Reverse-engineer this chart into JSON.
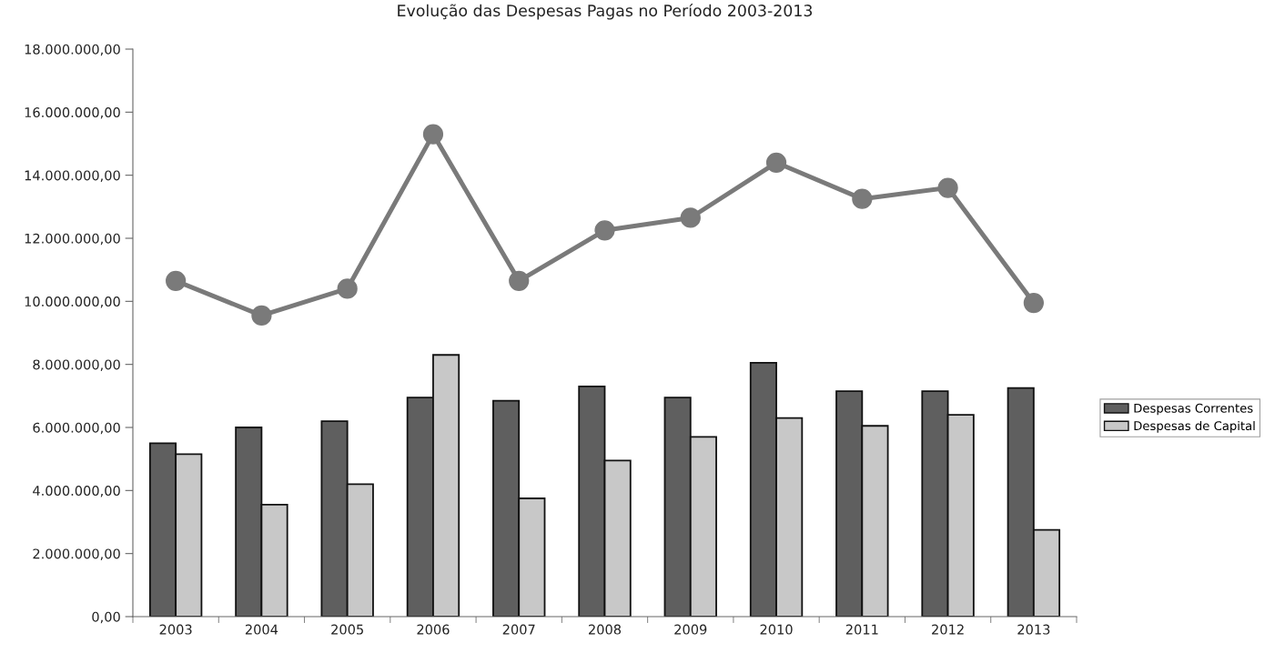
{
  "chart_data": {
    "type": "bar",
    "title": "Evolução das Despesas Pagas no Período 2003-2013",
    "categories": [
      "2003",
      "2004",
      "2005",
      "2006",
      "2007",
      "2008",
      "2009",
      "2010",
      "2011",
      "2012",
      "2013"
    ],
    "series": [
      {
        "name": "Despesas Correntes",
        "color": "#5f5f5f",
        "values": [
          5500000,
          6000000,
          6200000,
          6950000,
          6850000,
          7300000,
          6950000,
          8050000,
          7150000,
          7150000,
          7250000
        ]
      },
      {
        "name": "Despesas de Capital",
        "color": "#c8c8c8",
        "values": [
          5150000,
          3550000,
          4200000,
          8300000,
          3750000,
          4950000,
          5700000,
          6300000,
          6050000,
          6400000,
          2750000
        ]
      },
      {
        "type": "line",
        "color": "#7a7a7a",
        "marker": "circle",
        "values": [
          10650000,
          9550000,
          10400000,
          15300000,
          10650000,
          12250000,
          12650000,
          14400000,
          13250000,
          13600000,
          9950000
        ]
      }
    ],
    "ylim": [
      0,
      18000000
    ],
    "yticks": [
      {
        "value": 0,
        "label": "0,00"
      },
      {
        "value": 2000000,
        "label": "2.000.000,00"
      },
      {
        "value": 4000000,
        "label": "4.000.000,00"
      },
      {
        "value": 6000000,
        "label": "6.000.000,00"
      },
      {
        "value": 8000000,
        "label": "8.000.000,00"
      },
      {
        "value": 10000000,
        "label": "10.000.000,00"
      },
      {
        "value": 12000000,
        "label": "12.000.000,00"
      },
      {
        "value": 14000000,
        "label": "14.000.000,00"
      },
      {
        "value": 16000000,
        "label": "16.000.000,00"
      },
      {
        "value": 18000000,
        "label": "18.000.000,00"
      }
    ],
    "legend": "right"
  }
}
